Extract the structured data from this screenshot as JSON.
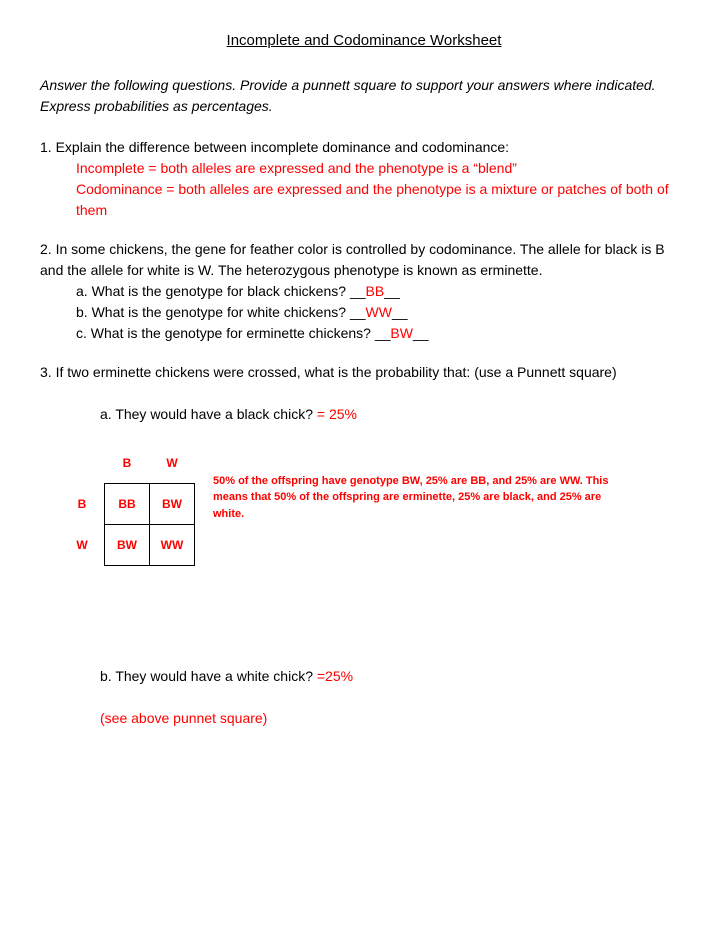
{
  "title": "Incomplete and Codominance Worksheet",
  "instructions": "Answer the following questions. Provide a punnett square to support your answers where indicated. Express probabilities as percentages.",
  "q1": {
    "number": "1.",
    "text": "Explain the difference between incomplete dominance and codominance:",
    "answer_line1": "Incomplete = both alleles are expressed and the phenotype is a “blend”",
    "answer_line2": "Codominance = both alleles are expressed and the phenotype is a mixture or patches of both of them"
  },
  "q2": {
    "number": "2.",
    "intro": "In some chickens, the gene for feather color is controlled by codominance. The allele for black is B and the allele for white is W. The heterozygous phenotype is known as erminette.",
    "a_text": "a. What is the genotype for black chickens? ",
    "a_blank_pre": "__",
    "a_answer": "BB",
    "a_blank_post": "__",
    "b_text": "b. What is the genotype for white chickens? ",
    "b_blank_pre": "__",
    "b_answer": "WW",
    "b_blank_post": "__",
    "c_text": "c. What is the genotype for erminette chickens? ",
    "c_blank_pre": "__",
    "c_answer": "BW",
    "c_blank_post": "__"
  },
  "q3": {
    "number": "3.",
    "text": "If two erminette chickens were crossed, what is the probability that: (use a Punnett square)",
    "a_text": "a.  They would have a black chick? ",
    "a_answer": "= 25%",
    "b_text": "b.  They would have a white chick? ",
    "b_answer": "=25%",
    "b_note": "(see above punnet square)"
  },
  "punnett": {
    "col1": "B",
    "col2": "W",
    "row1": "B",
    "row2": "W",
    "c11": "BB",
    "c12": "BW",
    "c21": "BW",
    "c22": "WW",
    "note": "50% of the offspring have genotype BW, 25% are BB, and 25% are WW. This means that 50% of the offspring are erminette, 25% are black, and 25% are white."
  },
  "colors": {
    "answer": "#ff0000",
    "text": "#000000",
    "background": "#ffffff"
  }
}
